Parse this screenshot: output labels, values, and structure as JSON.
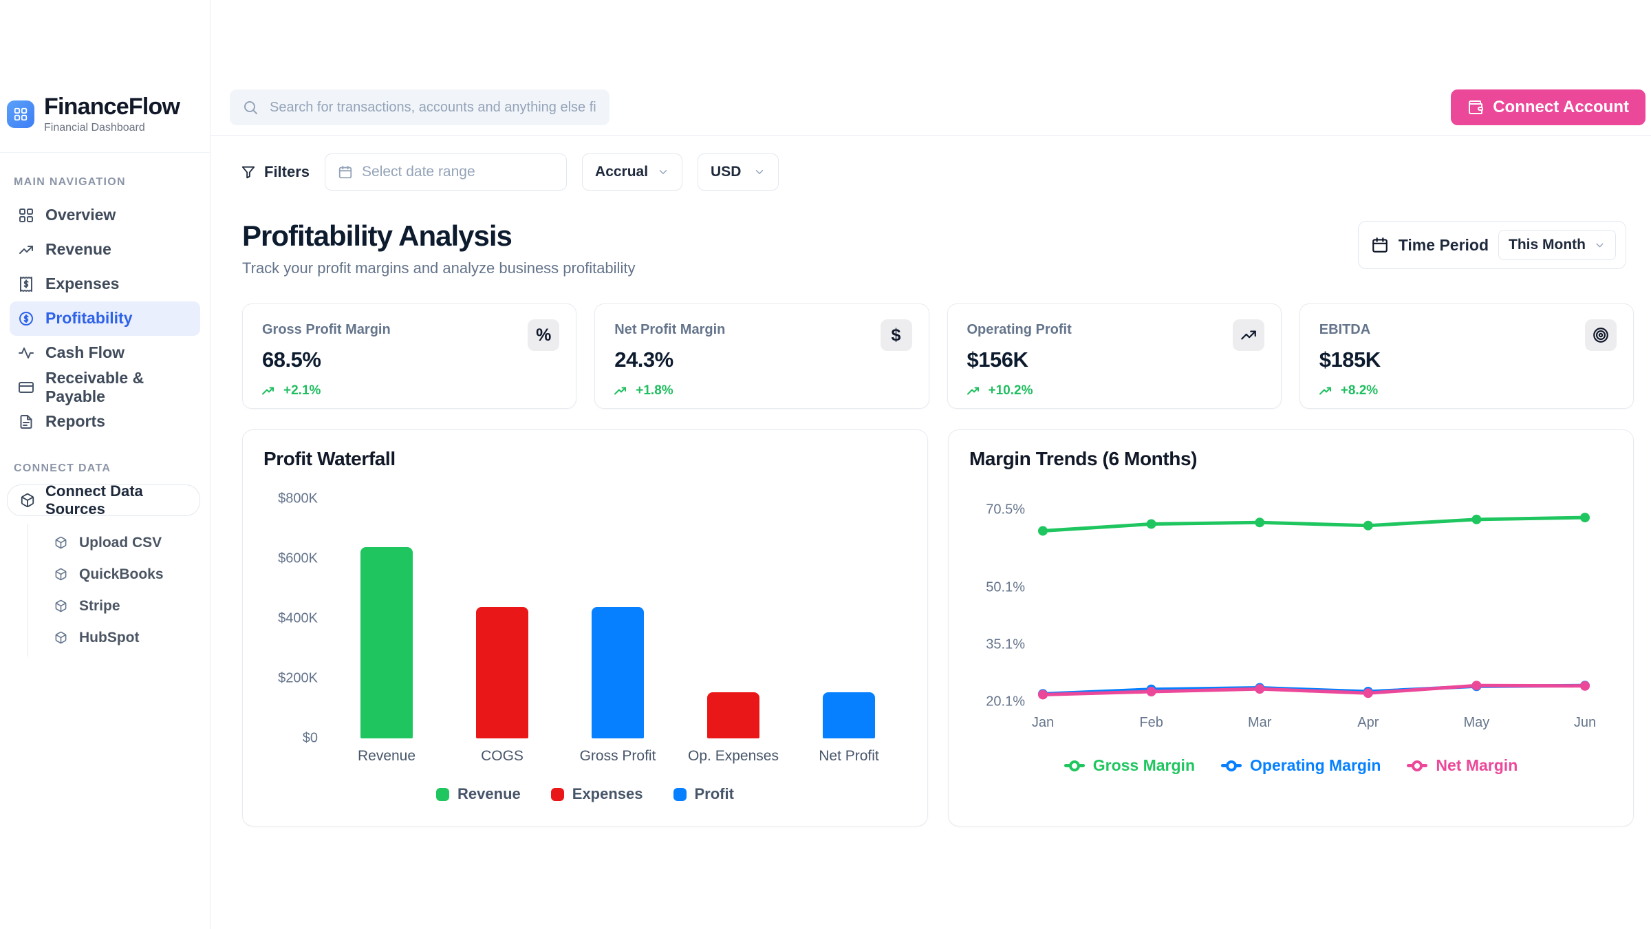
{
  "brand": {
    "name": "FinanceFlow",
    "tagline": "Financial Dashboard"
  },
  "topbar": {
    "search_placeholder": "Search for transactions, accounts and anything else financial",
    "connect_button": "Connect Account"
  },
  "sidebar": {
    "main_nav_label": "MAIN NAVIGATION",
    "items": [
      {
        "label": "Overview",
        "icon": "grid-icon",
        "active": false
      },
      {
        "label": "Revenue",
        "icon": "trending-up-icon",
        "active": false
      },
      {
        "label": "Expenses",
        "icon": "receipt-icon",
        "active": false
      },
      {
        "label": "Profitability",
        "icon": "circle-dollar-icon",
        "active": true
      },
      {
        "label": "Cash Flow",
        "icon": "activity-icon",
        "active": false
      },
      {
        "label": "Receivable & Payable",
        "icon": "credit-card-icon",
        "active": false
      },
      {
        "label": "Reports",
        "icon": "file-text-icon",
        "active": false
      }
    ],
    "connect_label": "CONNECT DATA",
    "connect_button": "Connect Data Sources",
    "connect_items": [
      "Upload CSV",
      "QuickBooks",
      "Stripe",
      "HubSpot"
    ]
  },
  "filters": {
    "filters_label": "Filters",
    "date_placeholder": "Select date range",
    "accounting_basis": "Accrual",
    "currency": "USD"
  },
  "page": {
    "title": "Profitability Analysis",
    "subtitle": "Track your profit margins and analyze business profitability",
    "time_period_label": "Time Period",
    "time_period_value": "This Month"
  },
  "kpis": [
    {
      "label": "Gross Profit Margin",
      "value": "68.5%",
      "delta": "+2.1%",
      "icon": "percent-icon",
      "glyph": "%"
    },
    {
      "label": "Net Profit Margin",
      "value": "24.3%",
      "delta": "+1.8%",
      "icon": "dollar-icon",
      "glyph": "$"
    },
    {
      "label": "Operating Profit",
      "value": "$156K",
      "delta": "+10.2%",
      "icon": "trending-up-icon",
      "glyph": ""
    },
    {
      "label": "EBITDA",
      "value": "$185K",
      "delta": "+8.2%",
      "icon": "target-icon",
      "glyph": ""
    }
  ],
  "colors": {
    "brand_blue": "#3d7ef6",
    "accent_pink": "#ec4899",
    "positive_green": "#1fbe5f",
    "active_nav_bg": "#e9effc",
    "active_nav_text": "#2e62e9"
  },
  "chart_data": [
    {
      "type": "bar",
      "title": "Profit Waterfall",
      "categories": [
        "Revenue",
        "COGS",
        "Gross Profit",
        "Op. Expenses",
        "Net Profit"
      ],
      "values": [
        640000,
        440000,
        440000,
        155000,
        155000
      ],
      "bar_colors": [
        "#1fc65f",
        "#e91717",
        "#0680ff",
        "#e91717",
        "#0680ff"
      ],
      "ylim": [
        0,
        800000
      ],
      "ytick_labels": [
        "$800K",
        "$600K",
        "$400K",
        "$200K",
        "$0"
      ],
      "grid": false,
      "legend_position": "bottom",
      "legend": [
        {
          "label": "Revenue",
          "color": "#1fc65f"
        },
        {
          "label": "Expenses",
          "color": "#e91717"
        },
        {
          "label": "Profit",
          "color": "#0680ff"
        }
      ]
    },
    {
      "type": "line",
      "title": "Margin Trends (6 Months)",
      "x": [
        "Jan",
        "Feb",
        "Mar",
        "Apr",
        "May",
        "Jun"
      ],
      "series": [
        {
          "name": "Gross Margin",
          "color": "#1fc65f",
          "values": [
            65.0,
            66.8,
            67.2,
            66.4,
            68.0,
            68.5
          ]
        },
        {
          "name": "Operating Margin",
          "color": "#0680ff",
          "values": [
            22.2,
            23.4,
            23.8,
            22.8,
            24.2,
            24.4
          ]
        },
        {
          "name": "Net Margin",
          "color": "#ec4899",
          "values": [
            22.0,
            22.8,
            23.5,
            22.4,
            24.4,
            24.3
          ]
        }
      ],
      "yticks": [
        70.5,
        50.1,
        35.1,
        20.1
      ],
      "ytick_labels": [
        "70.5%",
        "50.1%",
        "35.1%",
        "20.1%"
      ],
      "ylim": [
        20.1,
        70.5
      ],
      "grid": false,
      "legend_position": "bottom"
    }
  ]
}
